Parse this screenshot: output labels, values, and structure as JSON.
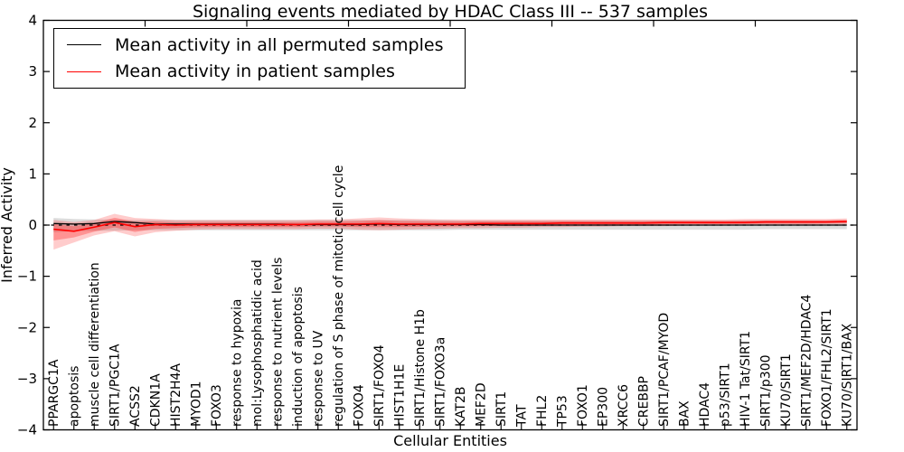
{
  "chart": {
    "title": "Signaling events mediated by HDAC Class III -- 537 samples",
    "xlabel": "Cellular Entities",
    "ylabel": "Inferred Activity",
    "legend": [
      {
        "label": "Mean activity in all permuted samples",
        "color": "#000000"
      },
      {
        "label": "Mean activity in patient samples",
        "color": "#ff0000"
      }
    ]
  },
  "chart_data": {
    "type": "line",
    "title": "Signaling events mediated by HDAC Class III -- 537 samples",
    "xlabel": "Cellular Entities",
    "ylabel": "Inferred Activity",
    "ylim": [
      -4,
      4
    ],
    "yticks": [
      4,
      3,
      2,
      1,
      0,
      -1,
      -2,
      -3,
      -4
    ],
    "grid": false,
    "legend_position": "upper left",
    "zero_line": {
      "present": true,
      "style": "dotted",
      "color": "#000000",
      "y": 0
    },
    "categories": [
      "PPARGC1A",
      "apoptosis",
      "muscle cell differentiation",
      "SIRT1/PGC1A",
      "ACSS2",
      "CDKN1A",
      "HIST2H4A",
      "MYOD1",
      "FOXO3",
      "response to hypoxia",
      "mol:Lysophosphatidic acid",
      "response to nutrient levels",
      "induction of apoptosis",
      "response to UV",
      "regulation of S phase of mitotic cell cycle",
      "FOXO4",
      "SIRT1/FOXO4",
      "HIST1H1E",
      "SIRT1/Histone H1b",
      "SIRT1/FOXO3a",
      "KAT2B",
      "MEF2D",
      "SIRT1",
      "TAT",
      "FHL2",
      "TP53",
      "FOXO1",
      "EP300",
      "XRCC6",
      "CREBBP",
      "SIRT1/PCAF/MYOD",
      "BAX",
      "HDAC4",
      "p53/SIRT1",
      "HIV-1 Tat/SIRT1",
      "SIRT1/p300",
      "KU70/SIRT1",
      "SIRT1/MEF2D/HDAC4",
      "FOXO1/FHL2/SIRT1",
      "KU70/SIRT1/BAX"
    ],
    "series": [
      {
        "name": "Mean activity in all permuted samples",
        "color": "#000000",
        "values": [
          0.03,
          0.02,
          0.03,
          0.07,
          0.05,
          0.02,
          0.02,
          0.02,
          0.02,
          0.02,
          0.02,
          0.02,
          0.01,
          0.01,
          0.01,
          0.01,
          0.02,
          0.01,
          0.01,
          0.01,
          0.01,
          0.01,
          0.0,
          0.0,
          0.0,
          0.0,
          0.0,
          0.0,
          0.0,
          0.0,
          0.0,
          0.0,
          0.0,
          0.0,
          0.0,
          0.0,
          0.0,
          0.0,
          0.0,
          0.0
        ]
      },
      {
        "name": "Mean activity in patient samples",
        "color": "#ff0000",
        "values": [
          -0.08,
          -0.12,
          -0.04,
          0.05,
          -0.03,
          0.01,
          0.0,
          0.01,
          0.01,
          0.01,
          0.01,
          0.01,
          0.01,
          0.02,
          0.02,
          0.02,
          0.03,
          0.02,
          0.02,
          0.02,
          0.02,
          0.03,
          0.03,
          0.03,
          0.03,
          0.04,
          0.04,
          0.04,
          0.04,
          0.04,
          0.05,
          0.05,
          0.05,
          0.05,
          0.05,
          0.06,
          0.06,
          0.06,
          0.06,
          0.07
        ]
      }
    ],
    "bands": [
      {
        "name": "permuted-samples-range",
        "color": "#808080",
        "opacity": 0.28,
        "upper": [
          0.14,
          0.12,
          0.11,
          0.11,
          0.1,
          0.1,
          0.1,
          0.1,
          0.1,
          0.1,
          0.1,
          0.1,
          0.1,
          0.1,
          0.1,
          0.1,
          0.1,
          0.1,
          0.1,
          0.1,
          0.09,
          0.09,
          0.09,
          0.09,
          0.09,
          0.09,
          0.09,
          0.09,
          0.09,
          0.09,
          0.09,
          0.09,
          0.09,
          0.09,
          0.09,
          0.09,
          0.09,
          0.09,
          0.09,
          0.09
        ],
        "lower": [
          -0.14,
          -0.12,
          -0.11,
          -0.11,
          -0.1,
          -0.1,
          -0.1,
          -0.1,
          -0.1,
          -0.1,
          -0.1,
          -0.1,
          -0.1,
          -0.1,
          -0.1,
          -0.1,
          -0.1,
          -0.1,
          -0.1,
          -0.1,
          -0.09,
          -0.09,
          -0.09,
          -0.09,
          -0.09,
          -0.09,
          -0.09,
          -0.09,
          -0.09,
          -0.09,
          -0.09,
          -0.09,
          -0.09,
          -0.09,
          -0.09,
          -0.08,
          -0.08,
          -0.08,
          -0.08,
          -0.08
        ]
      },
      {
        "name": "patient-samples-range",
        "color": "#ff0000",
        "opacity": 0.2,
        "upper": [
          0.1,
          0.06,
          0.1,
          0.22,
          0.14,
          0.12,
          0.1,
          0.1,
          0.1,
          0.1,
          0.1,
          0.1,
          0.1,
          0.11,
          0.11,
          0.13,
          0.15,
          0.13,
          0.12,
          0.11,
          0.11,
          0.11,
          0.11,
          0.11,
          0.11,
          0.11,
          0.11,
          0.11,
          0.11,
          0.11,
          0.11,
          0.11,
          0.11,
          0.11,
          0.12,
          0.12,
          0.12,
          0.12,
          0.12,
          0.13
        ],
        "lower": [
          -0.48,
          -0.34,
          -0.2,
          -0.12,
          -0.22,
          -0.14,
          -0.11,
          -0.09,
          -0.08,
          -0.08,
          -0.08,
          -0.08,
          -0.08,
          -0.07,
          -0.07,
          -0.09,
          -0.1,
          -0.09,
          -0.08,
          -0.07,
          -0.06,
          -0.06,
          -0.05,
          -0.05,
          -0.04,
          -0.04,
          -0.03,
          -0.03,
          -0.02,
          -0.02,
          -0.02,
          -0.01,
          -0.01,
          -0.01,
          0.0,
          0.0,
          0.0,
          0.0,
          0.01,
          0.01
        ]
      }
    ]
  }
}
